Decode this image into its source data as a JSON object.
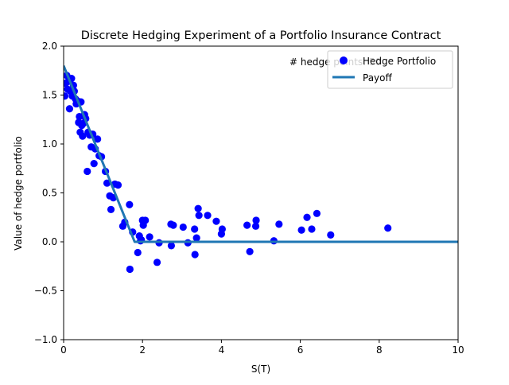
{
  "chart_data": {
    "type": "scatter",
    "title": "Discrete Hedging Experiment of a Portfolio Insurance Contract",
    "xlabel": "S(T)",
    "ylabel": "Value of hedge portfolio",
    "xlim": [
      0,
      10
    ],
    "ylim": [
      -1.0,
      2.0
    ],
    "x_ticks": [
      "0",
      "2",
      "4",
      "6",
      "8",
      "10"
    ],
    "x_tick_values": [
      0,
      2,
      4,
      6,
      8,
      10
    ],
    "y_ticks": [
      "−1.0",
      "−0.5",
      "0.0",
      "0.5",
      "1.0",
      "1.5",
      "2.0"
    ],
    "y_tick_values": [
      -1.0,
      -0.5,
      0.0,
      0.5,
      1.0,
      1.5,
      2.0
    ],
    "grid": false,
    "legend_position": "top-right",
    "annotation": "# hedge points: 50",
    "colors": {
      "scatter": "#0000ff",
      "line": "#1f77b4"
    },
    "series": [
      {
        "name": "Hedge Portfolio",
        "kind": "scatter",
        "points": [
          [
            0.03,
            1.49
          ],
          [
            0.05,
            1.62
          ],
          [
            0.08,
            1.7
          ],
          [
            0.1,
            1.56
          ],
          [
            0.12,
            1.64
          ],
          [
            0.15,
            1.36
          ],
          [
            0.17,
            1.54
          ],
          [
            0.2,
            1.67
          ],
          [
            0.22,
            1.49
          ],
          [
            0.25,
            1.6
          ],
          [
            0.27,
            1.54
          ],
          [
            0.3,
            1.46
          ],
          [
            0.32,
            1.41
          ],
          [
            0.35,
            1.44
          ],
          [
            0.38,
            1.22
          ],
          [
            0.4,
            1.28
          ],
          [
            0.42,
            1.12
          ],
          [
            0.44,
            1.43
          ],
          [
            0.46,
            1.19
          ],
          [
            0.48,
            1.08
          ],
          [
            0.5,
            1.21
          ],
          [
            0.53,
            1.3
          ],
          [
            0.56,
            1.26
          ],
          [
            0.6,
            0.72
          ],
          [
            0.62,
            1.12
          ],
          [
            0.66,
            1.09
          ],
          [
            0.7,
            0.97
          ],
          [
            0.74,
            1.1
          ],
          [
            0.77,
            0.8
          ],
          [
            0.8,
            0.95
          ],
          [
            0.86,
            1.05
          ],
          [
            0.9,
            0.88
          ],
          [
            0.96,
            0.87
          ],
          [
            1.06,
            0.72
          ],
          [
            1.1,
            0.6
          ],
          [
            1.17,
            0.47
          ],
          [
            1.2,
            0.33
          ],
          [
            1.26,
            0.45
          ],
          [
            1.3,
            0.59
          ],
          [
            1.38,
            0.58
          ],
          [
            1.5,
            0.16
          ],
          [
            1.55,
            0.2
          ],
          [
            1.67,
            0.38
          ],
          [
            1.68,
            -0.28
          ],
          [
            1.75,
            0.1
          ],
          [
            1.88,
            -0.11
          ],
          [
            1.92,
            0.06
          ],
          [
            1.95,
            0.01
          ],
          [
            1.97,
            0.02
          ],
          [
            2.0,
            0.22
          ],
          [
            2.02,
            0.17
          ],
          [
            2.07,
            0.22
          ],
          [
            2.18,
            0.05
          ],
          [
            2.37,
            -0.21
          ],
          [
            2.42,
            -0.01
          ],
          [
            2.72,
            0.18
          ],
          [
            2.73,
            -0.04
          ],
          [
            2.78,
            0.17
          ],
          [
            3.03,
            0.15
          ],
          [
            3.15,
            -0.01
          ],
          [
            3.32,
            0.13
          ],
          [
            3.33,
            -0.13
          ],
          [
            3.37,
            0.04
          ],
          [
            3.41,
            0.34
          ],
          [
            3.43,
            0.27
          ],
          [
            3.65,
            0.27
          ],
          [
            3.87,
            0.21
          ],
          [
            4.0,
            0.08
          ],
          [
            4.02,
            0.13
          ],
          [
            4.65,
            0.17
          ],
          [
            4.72,
            -0.1
          ],
          [
            4.87,
            0.16
          ],
          [
            4.88,
            0.22
          ],
          [
            5.33,
            0.01
          ],
          [
            5.46,
            0.18
          ],
          [
            6.03,
            0.12
          ],
          [
            6.17,
            0.25
          ],
          [
            6.29,
            0.13
          ],
          [
            6.42,
            0.29
          ],
          [
            6.77,
            0.07
          ],
          [
            8.22,
            0.14
          ]
        ]
      },
      {
        "name": "Payoff",
        "kind": "line",
        "points": [
          [
            0,
            1.8
          ],
          [
            1.8,
            0
          ],
          [
            10,
            0
          ]
        ]
      }
    ]
  }
}
